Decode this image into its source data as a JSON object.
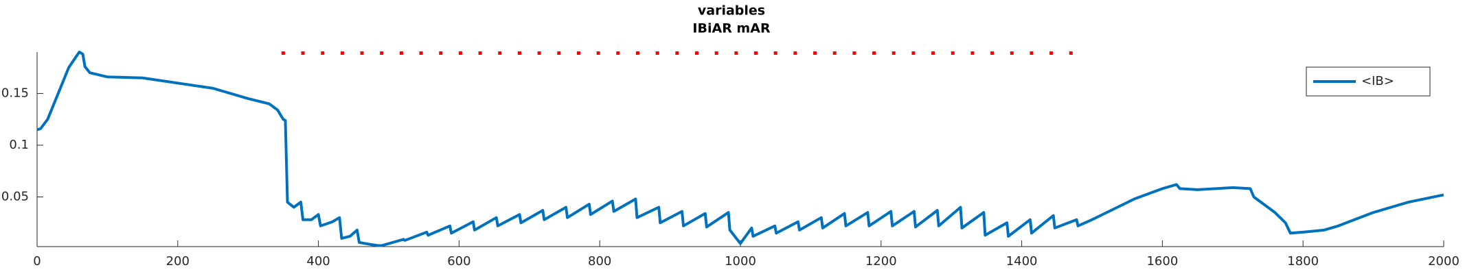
{
  "chart_data": {
    "type": "line",
    "title": "variables",
    "subtitle": "IBiAR mAR",
    "xlim": [
      0,
      2000
    ],
    "ylim": [
      0.002,
      0.19
    ],
    "xticks": [
      0,
      200,
      400,
      600,
      800,
      1000,
      1200,
      1400,
      1600,
      1800,
      2000
    ],
    "yticks": [
      0.05,
      0.1,
      0.15
    ],
    "grid": false,
    "legend": "upper right",
    "series": [
      {
        "name": "<IB>",
        "color": "#0072bd",
        "style": "solid",
        "x": [
          0,
          5,
          15,
          30,
          45,
          55,
          60,
          65,
          68,
          75,
          100,
          150,
          200,
          250,
          300,
          330,
          342,
          350,
          353,
          356,
          365,
          375,
          378,
          390,
          400,
          403,
          420,
          430,
          433,
          445,
          455,
          458,
          475,
          485,
          490,
          521,
          523,
          554,
          556,
          587,
          589,
          620,
          622,
          653,
          655,
          686,
          688,
          719,
          721,
          752,
          754,
          785,
          787,
          818,
          820,
          851,
          853,
          884,
          886,
          917,
          919,
          950,
          952,
          983,
          985,
          1000,
          1016,
          1018,
          1049,
          1051,
          1082,
          1084,
          1115,
          1117,
          1148,
          1150,
          1181,
          1183,
          1214,
          1216,
          1247,
          1249,
          1280,
          1282,
          1313,
          1315,
          1346,
          1348,
          1379,
          1381,
          1412,
          1414,
          1445,
          1447,
          1478,
          1480,
          1500,
          1530,
          1560,
          1600,
          1620,
          1625,
          1650,
          1700,
          1725,
          1730,
          1760,
          1775,
          1782,
          1800,
          1830,
          1850,
          1900,
          1950,
          2000
        ],
        "values": [
          0.115,
          0.116,
          0.125,
          0.15,
          0.175,
          0.185,
          0.19,
          0.188,
          0.176,
          0.17,
          0.166,
          0.165,
          0.16,
          0.155,
          0.145,
          0.14,
          0.134,
          0.125,
          0.124,
          0.045,
          0.04,
          0.045,
          0.028,
          0.028,
          0.033,
          0.022,
          0.026,
          0.03,
          0.01,
          0.012,
          0.018,
          0.006,
          0.004,
          0.003,
          0.003,
          0.009,
          0.008,
          0.016,
          0.013,
          0.022,
          0.015,
          0.026,
          0.018,
          0.03,
          0.022,
          0.033,
          0.025,
          0.037,
          0.028,
          0.04,
          0.03,
          0.043,
          0.033,
          0.046,
          0.036,
          0.048,
          0.03,
          0.04,
          0.025,
          0.036,
          0.022,
          0.034,
          0.021,
          0.035,
          0.018,
          0.005,
          0.02,
          0.012,
          0.022,
          0.015,
          0.026,
          0.018,
          0.03,
          0.02,
          0.034,
          0.022,
          0.035,
          0.022,
          0.036,
          0.022,
          0.036,
          0.021,
          0.037,
          0.022,
          0.04,
          0.02,
          0.035,
          0.013,
          0.025,
          0.012,
          0.028,
          0.015,
          0.032,
          0.02,
          0.028,
          0.022,
          0.028,
          0.038,
          0.048,
          0.058,
          0.062,
          0.058,
          0.057,
          0.059,
          0.058,
          0.05,
          0.035,
          0.025,
          0.015,
          0.016,
          0.018,
          0.022,
          0.035,
          0.045,
          0.052
        ]
      },
      {
        "color": "#ff0000",
        "style": "dotted",
        "x": [
          350,
          378,
          406,
          434,
          462,
          490,
          518,
          546,
          574,
          602,
          630,
          658,
          686,
          714,
          742,
          770,
          798,
          826,
          854,
          882,
          910,
          938,
          966,
          994,
          1022,
          1050,
          1078,
          1106,
          1134,
          1162,
          1190,
          1218,
          1246,
          1274,
          1302,
          1330,
          1358,
          1386,
          1414,
          1442,
          1470
        ],
        "values": [
          0.189,
          0.189,
          0.189,
          0.189,
          0.189,
          0.189,
          0.189,
          0.189,
          0.189,
          0.189,
          0.189,
          0.189,
          0.189,
          0.189,
          0.189,
          0.189,
          0.189,
          0.189,
          0.189,
          0.189,
          0.189,
          0.189,
          0.189,
          0.189,
          0.189,
          0.189,
          0.189,
          0.189,
          0.189,
          0.189,
          0.189,
          0.189,
          0.189,
          0.189,
          0.189,
          0.189,
          0.189,
          0.189,
          0.189,
          0.189,
          0.189
        ]
      }
    ]
  }
}
